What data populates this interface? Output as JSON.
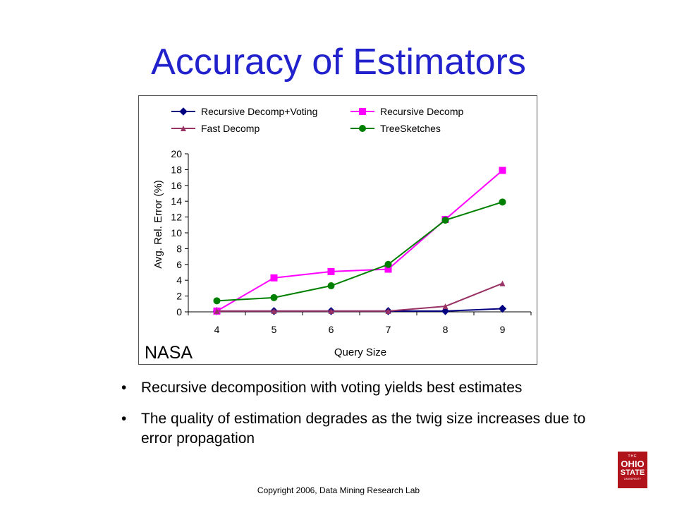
{
  "slide": {
    "title": "Accuracy of Estimators",
    "bullets": [
      "Recursive decomposition with voting yields best estimates",
      "The quality of estimation degrades as the twig size increases due to error propagation"
    ],
    "bullet_marker": "•",
    "footer": "Copyright 2006, Data Mining Research Lab",
    "logo": {
      "line1": "THE",
      "line2": "OHIO",
      "line3": "STATE",
      "line4": "UNIVERSITY"
    }
  },
  "chart_data": {
    "type": "line",
    "title": "",
    "corner_label": "NASA",
    "xlabel": "Query Size",
    "ylabel": "Avg. Rel. Error (%)",
    "categories": [
      "4",
      "5",
      "6",
      "7",
      "8",
      "9"
    ],
    "ylim": [
      0,
      20
    ],
    "yticks": [
      0,
      2,
      4,
      6,
      8,
      10,
      12,
      14,
      16,
      18,
      20
    ],
    "grid": false,
    "legend": "top",
    "series": [
      {
        "name": "Recursive Decomp+Voting",
        "values": [
          0.1,
          0.1,
          0.1,
          0.1,
          0.1,
          0.4
        ],
        "color": "#000080",
        "marker": "diamond"
      },
      {
        "name": "Recursive Decomp",
        "values": [
          0.1,
          4.3,
          5.1,
          5.4,
          11.7,
          17.9
        ],
        "color": "#ff00ff",
        "marker": "square"
      },
      {
        "name": "Fast Decomp",
        "values": [
          0.1,
          0.1,
          0.1,
          0.1,
          0.7,
          3.6
        ],
        "color": "#993366",
        "marker": "triangle"
      },
      {
        "name": "TreeSketches",
        "values": [
          1.4,
          1.8,
          3.3,
          6.0,
          11.6,
          13.9
        ],
        "color": "#008000",
        "marker": "circle"
      }
    ]
  }
}
